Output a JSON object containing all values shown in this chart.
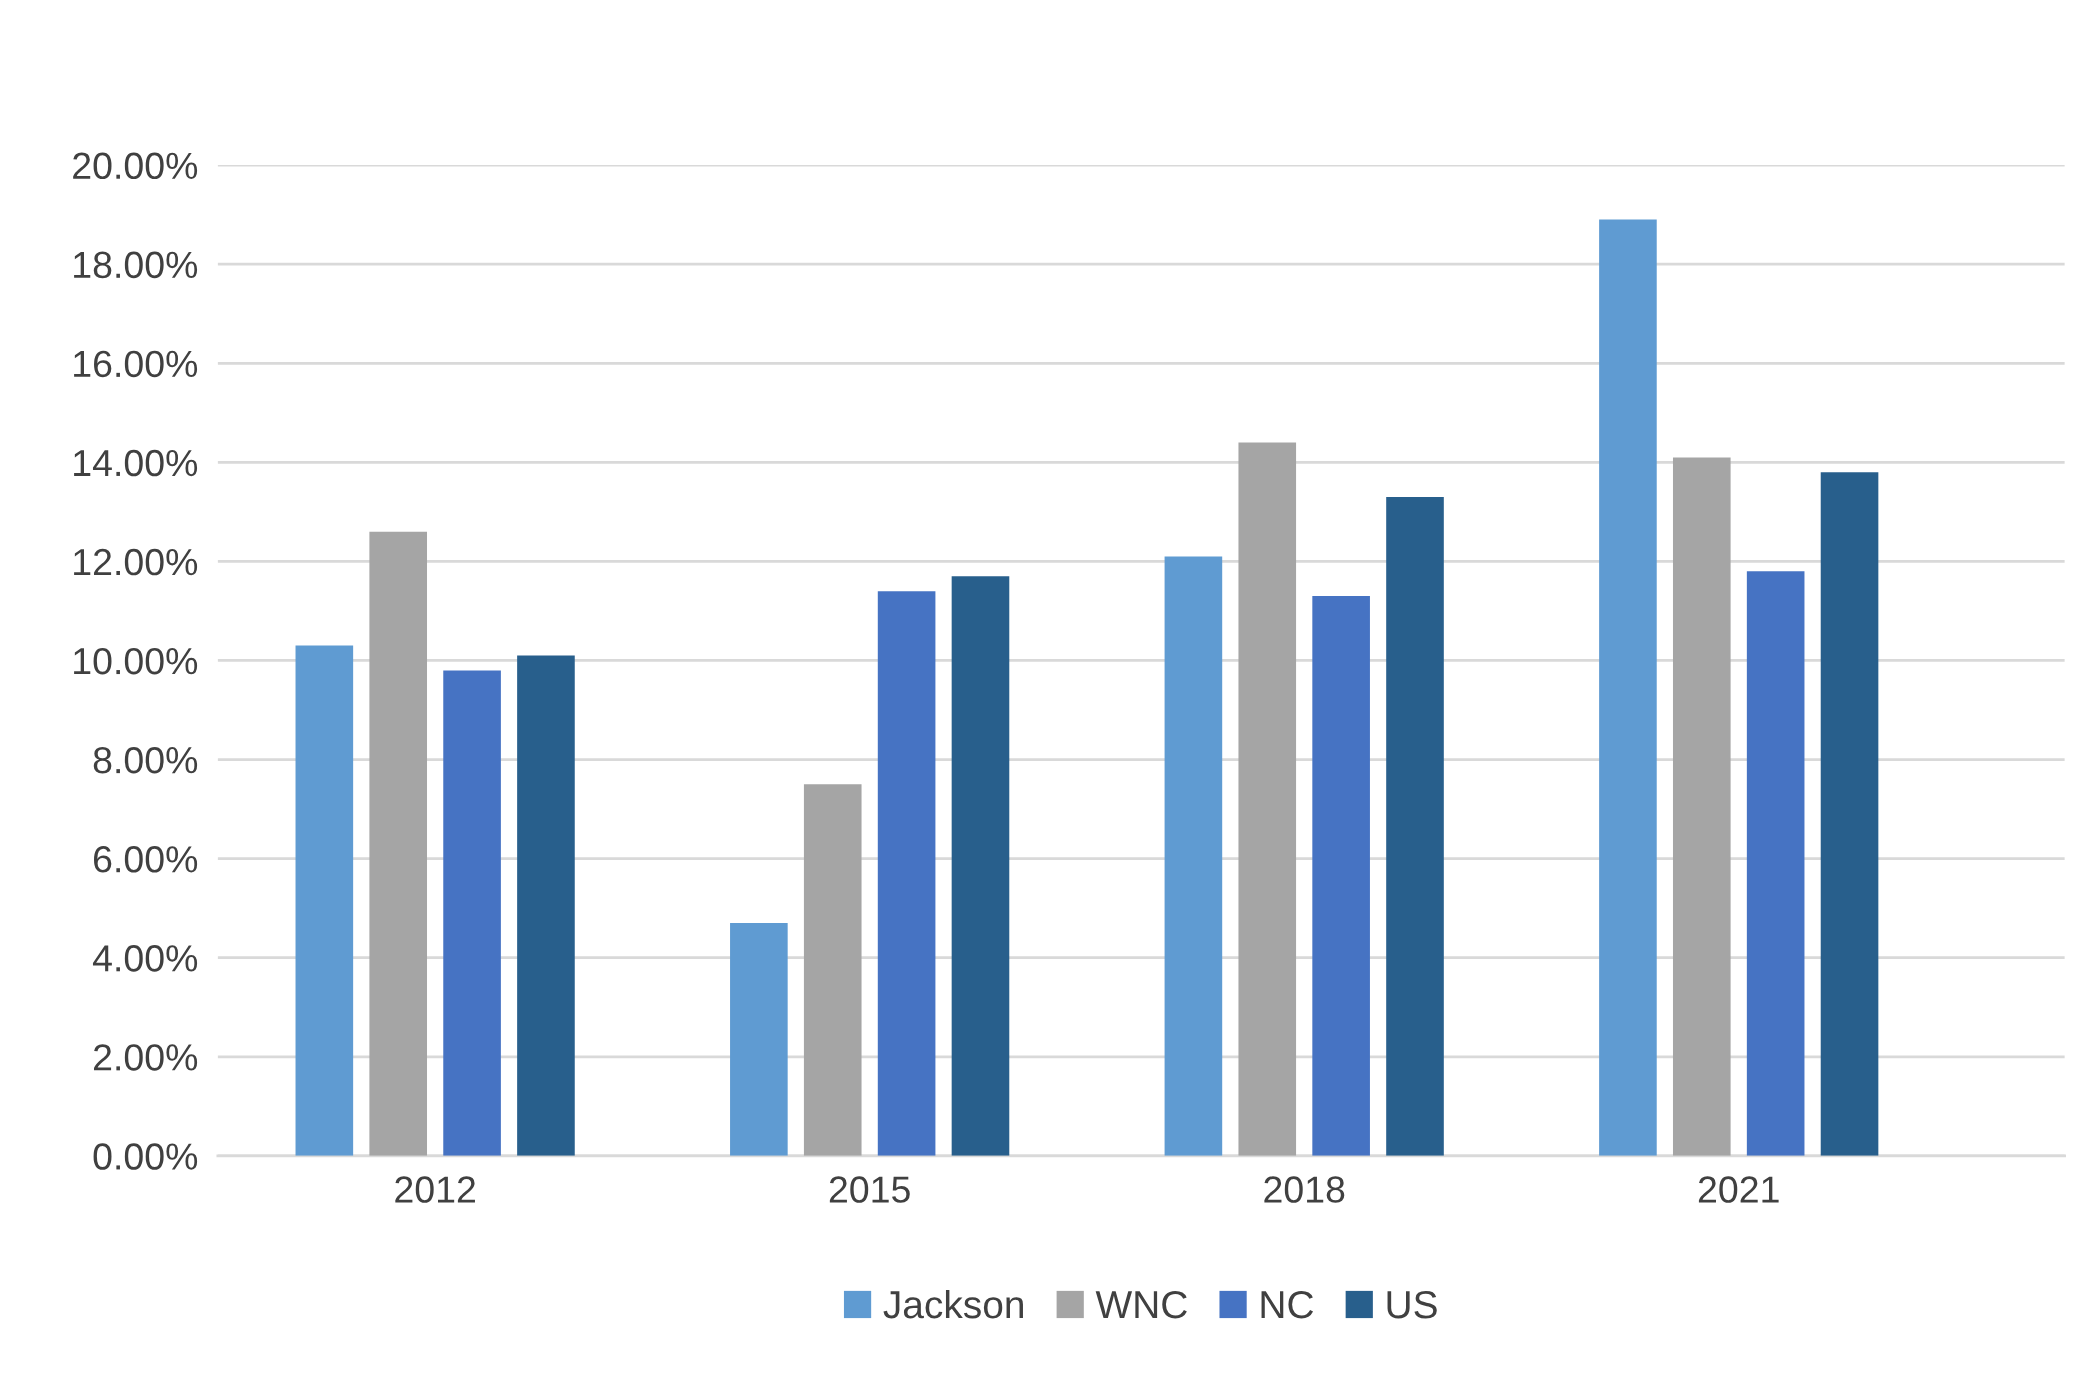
{
  "chart_data": {
    "type": "bar",
    "categories": [
      "2012",
      "2015",
      "2018",
      "2021"
    ],
    "series": [
      {
        "name": "Jackson",
        "color": "#5f9bd2",
        "values": [
          10.3,
          4.7,
          12.1,
          18.9
        ]
      },
      {
        "name": "WNC",
        "color": "#a5a5a5",
        "values": [
          12.6,
          7.5,
          14.4,
          14.1
        ]
      },
      {
        "name": "NC",
        "color": "#4673c3",
        "values": [
          9.8,
          11.4,
          11.3,
          11.8
        ]
      },
      {
        "name": "US",
        "color": "#285f8c",
        "values": [
          10.1,
          11.7,
          13.3,
          13.8
        ]
      }
    ],
    "ylim": [
      0,
      20
    ],
    "yticks": [
      {
        "value": 0,
        "label": "0.00%"
      },
      {
        "value": 2,
        "label": "2.00%"
      },
      {
        "value": 4,
        "label": "4.00%"
      },
      {
        "value": 6,
        "label": "6.00%"
      },
      {
        "value": 8,
        "label": "8.00%"
      },
      {
        "value": 10,
        "label": "10.00%"
      },
      {
        "value": 12,
        "label": "12.00%"
      },
      {
        "value": 14,
        "label": "14.00%"
      },
      {
        "value": 16,
        "label": "16.00%"
      },
      {
        "value": 18,
        "label": "18.00%"
      },
      {
        "value": 20,
        "label": "20.00%"
      }
    ],
    "grid": "y",
    "legend": "bottom"
  }
}
